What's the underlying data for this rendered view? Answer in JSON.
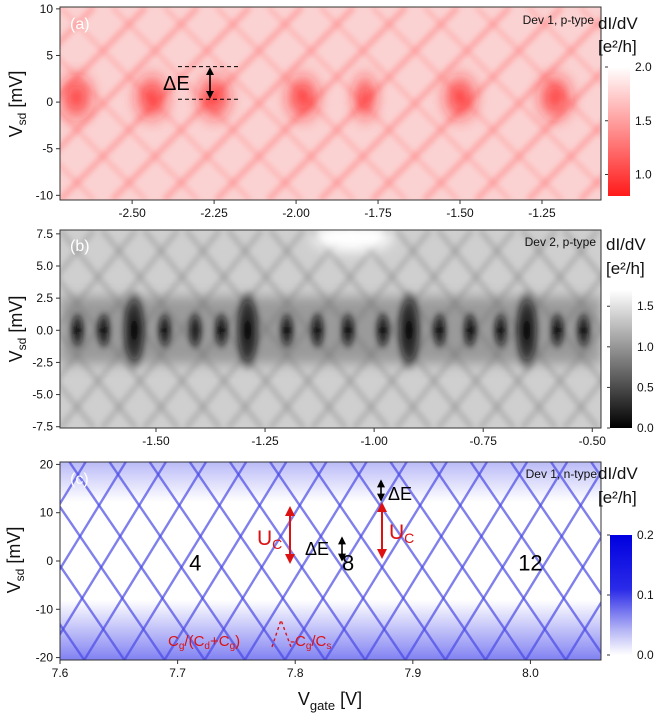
{
  "figure": {
    "xlabel": "V",
    "xlabel_sub": "gate",
    "xlabel_unit": " [V]"
  },
  "chart_data": [
    {
      "type": "heatmap",
      "panel": "(a)",
      "device": "Dev 1, p-type",
      "xlim": [
        -2.72,
        -1.07
      ],
      "ylim": [
        -10.5,
        10.2
      ],
      "x_ticks": [
        -2.5,
        -2.25,
        -2.0,
        -1.75,
        -1.5,
        -1.25
      ],
      "x_tick_labels": [
        "-2.50",
        "-2.25",
        "-2.00",
        "-1.75",
        "-1.50",
        "-1.25"
      ],
      "y_ticks": [
        10,
        5,
        0,
        -5,
        -10
      ],
      "y_tick_labels": [
        "10",
        "5",
        "0",
        "-5",
        "-10"
      ],
      "ylabel": "V",
      "ylabel_sub": "sd",
      "ylabel_unit": " [mV]",
      "colorbar": {
        "title": "dI/dV",
        "unit": "[e²/h]",
        "range": [
          0.8,
          2.0
        ],
        "ticks": [
          2.0,
          1.5,
          1.0
        ],
        "tick_labels": [
          "2.0",
          "1.5",
          "1.0"
        ],
        "colors": [
          "#ff1a1a",
          "#ffffff"
        ]
      },
      "annotation": {
        "text": "ΔE",
        "y_top_mV": 3.8,
        "y_bottom_mV": 0.3
      }
    },
    {
      "type": "heatmap",
      "panel": "(b)",
      "device": "Dev 2, p-type",
      "xlim": [
        -1.72,
        -0.48
      ],
      "ylim": [
        -7.6,
        7.8
      ],
      "x_ticks": [
        -1.5,
        -1.25,
        -1.0,
        -0.75,
        -0.5
      ],
      "x_tick_labels": [
        "-1.50",
        "-1.25",
        "-1.00",
        "-0.75",
        "-0.50"
      ],
      "y_ticks": [
        7.5,
        5.0,
        2.5,
        0.0,
        -2.5,
        -5.0,
        -7.5
      ],
      "y_tick_labels": [
        "7.5",
        "5.0",
        "2.5",
        "0.0",
        "-2.5",
        "-5.0",
        "-7.5"
      ],
      "ylabel": "V",
      "ylabel_sub": "sd",
      "ylabel_unit": " [mV]",
      "colorbar": {
        "title": "dI/dV",
        "unit": "[e²/h]",
        "range": [
          0.0,
          1.7
        ],
        "ticks": [
          1.5,
          1.0,
          0.5,
          0.0
        ],
        "tick_labels": [
          "1.5",
          "1.0",
          "0.5",
          "0.0"
        ],
        "colors": [
          "#000000",
          "#ffffff"
        ]
      }
    },
    {
      "type": "heatmap",
      "panel": "(c)",
      "device": "Dev 1, n-type",
      "xlim": [
        7.6,
        8.06
      ],
      "ylim": [
        -20.5,
        20.5
      ],
      "x_ticks": [
        7.6,
        7.7,
        7.8,
        7.9,
        8.0
      ],
      "x_tick_labels": [
        "7.6",
        "7.7",
        "7.8",
        "7.9",
        "8.0"
      ],
      "y_ticks": [
        20,
        10,
        0,
        -10,
        -20
      ],
      "y_tick_labels": [
        "20",
        "10",
        "0",
        "-10",
        "-20"
      ],
      "ylabel": "V",
      "ylabel_sub": "sd",
      "ylabel_unit": " [mV]",
      "colorbar": {
        "title": "dI/dV",
        "unit": "[e²/h]",
        "range": [
          0.0,
          0.2
        ],
        "ticks": [
          0.2,
          0.1,
          0.0
        ],
        "tick_labels": [
          "0.2",
          "0.1",
          "0.0"
        ],
        "colors": [
          "#ffffff",
          "#0000e0"
        ]
      },
      "electron_numbers": [
        {
          "label": "4",
          "x": 7.715,
          "y": -2
        },
        {
          "label": "8",
          "x": 7.845,
          "y": -2
        },
        {
          "label": "12",
          "x": 8.0,
          "y": -2
        }
      ],
      "annotations": {
        "uc_label": "U",
        "uc_sub": "C",
        "de_label": "ΔE",
        "slope1": "C",
        "slope1_parts": [
          "g",
          "/(C",
          "d",
          "+C",
          "g",
          ")"
        ],
        "slope2": "-C",
        "slope2_parts": [
          "g",
          "/C",
          "s"
        ]
      }
    }
  ]
}
